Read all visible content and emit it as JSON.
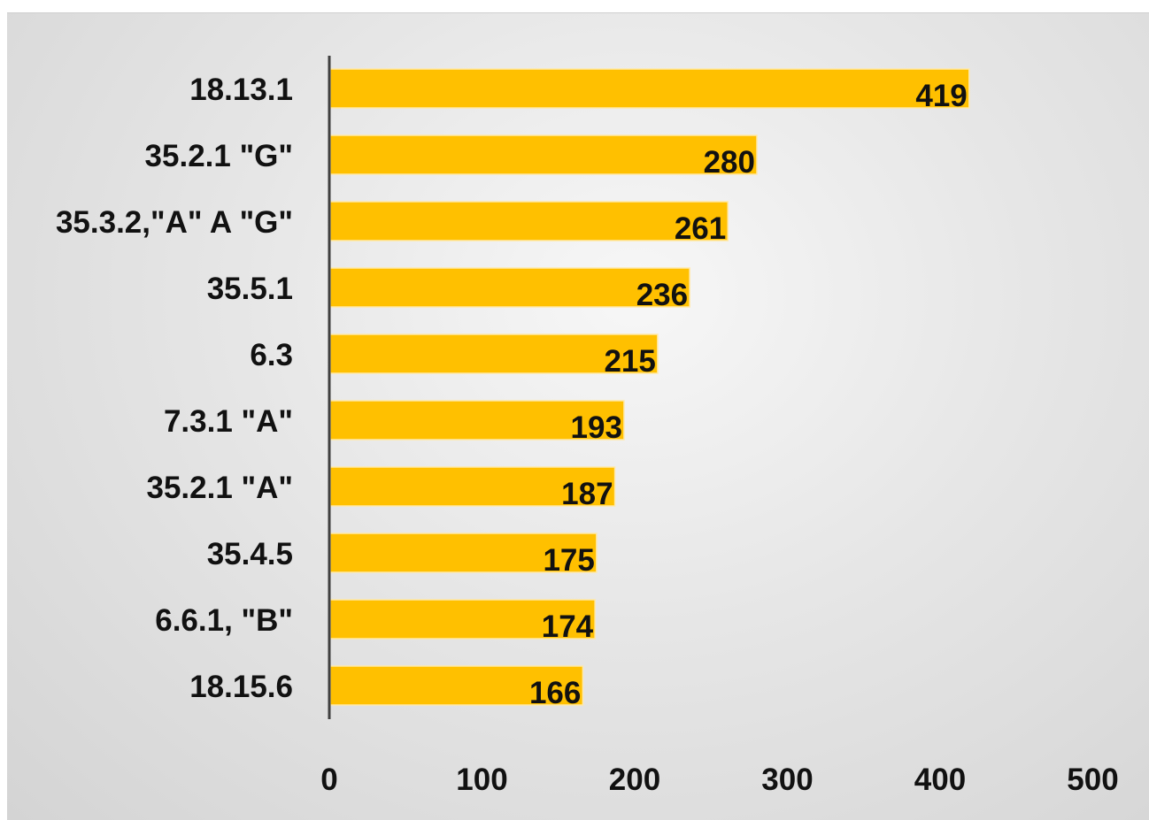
{
  "chart_data": {
    "type": "bar",
    "orientation": "horizontal",
    "categories": [
      "18.13.1",
      "35.2.1 \"G\"",
      "35.3.2,\"A\" A \"G\"",
      "35.5.1",
      "6.3",
      "7.3.1 \"A\"",
      "35.2.1 \"A\"",
      "35.4.5",
      "6.6.1, \"B\"",
      "18.15.6"
    ],
    "values": [
      419,
      280,
      261,
      236,
      215,
      193,
      187,
      175,
      174,
      166
    ],
    "xlim": [
      0,
      500
    ],
    "xticks": [
      "0",
      "100",
      "200",
      "300",
      "400",
      "500"
    ],
    "grid": false,
    "bar_color": "#FFC000",
    "data_labels": true
  }
}
